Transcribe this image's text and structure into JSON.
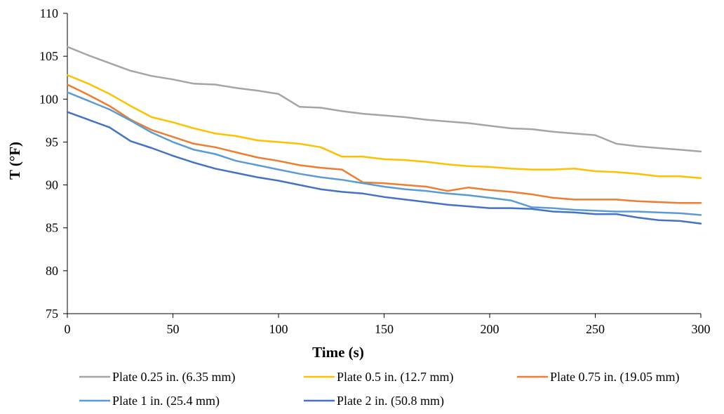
{
  "chart_data": {
    "type": "line",
    "title": "",
    "xlabel": "Time (s)",
    "ylabel": "T (°F)",
    "xlim": [
      0,
      300
    ],
    "ylim": [
      75,
      110
    ],
    "xticks": [
      0,
      50,
      100,
      150,
      200,
      250,
      300
    ],
    "yticks": [
      75,
      80,
      85,
      90,
      95,
      100,
      105,
      110
    ],
    "grid": false,
    "legend_position": "bottom",
    "series": [
      {
        "name": "Plate 0.25 in. (6.35 mm)",
        "color": "#a5a5a5",
        "x": [
          0,
          10,
          20,
          30,
          40,
          50,
          60,
          70,
          80,
          90,
          100,
          110,
          120,
          130,
          140,
          150,
          160,
          170,
          180,
          190,
          200,
          210,
          220,
          230,
          240,
          250,
          260,
          270,
          280,
          290,
          300
        ],
        "y": [
          106.1,
          105.1,
          104.2,
          103.3,
          102.7,
          102.3,
          101.8,
          101.7,
          101.3,
          101.0,
          100.6,
          99.1,
          99.0,
          98.6,
          98.3,
          98.1,
          97.9,
          97.6,
          97.4,
          97.2,
          96.9,
          96.6,
          96.5,
          96.2,
          96.0,
          95.8,
          94.8,
          94.5,
          94.3,
          94.1,
          93.9
        ]
      },
      {
        "name": "Plate 0.5 in. (12.7 mm)",
        "color": "#ffc000",
        "x": [
          0,
          10,
          20,
          30,
          40,
          50,
          60,
          70,
          80,
          90,
          100,
          110,
          120,
          130,
          140,
          150,
          160,
          170,
          180,
          190,
          200,
          210,
          220,
          230,
          240,
          250,
          260,
          270,
          280,
          290,
          300
        ],
        "y": [
          102.8,
          101.8,
          100.6,
          99.2,
          97.9,
          97.3,
          96.6,
          96.0,
          95.7,
          95.2,
          95.0,
          94.8,
          94.4,
          93.3,
          93.3,
          93.0,
          92.9,
          92.7,
          92.4,
          92.2,
          92.1,
          91.9,
          91.8,
          91.8,
          91.9,
          91.6,
          91.5,
          91.3,
          91.0,
          91.0,
          90.8
        ]
      },
      {
        "name": "Plate 0.75 in. (19.05 mm)",
        "color": "#ed7d31",
        "x": [
          0,
          10,
          20,
          30,
          40,
          50,
          60,
          70,
          80,
          90,
          100,
          110,
          120,
          130,
          140,
          150,
          160,
          170,
          180,
          190,
          200,
          210,
          220,
          230,
          240,
          250,
          260,
          270,
          280,
          290,
          300
        ],
        "y": [
          101.7,
          100.5,
          99.2,
          97.6,
          96.4,
          95.6,
          94.8,
          94.4,
          93.8,
          93.2,
          92.8,
          92.3,
          92.0,
          91.8,
          90.3,
          90.2,
          90.0,
          89.8,
          89.3,
          89.7,
          89.4,
          89.2,
          88.9,
          88.5,
          88.3,
          88.3,
          88.3,
          88.1,
          88.0,
          87.9,
          87.9
        ]
      },
      {
        "name": "Plate 1 in. (25.4 mm)",
        "color": "#5b9bd5",
        "x": [
          0,
          10,
          20,
          30,
          40,
          50,
          60,
          70,
          80,
          90,
          100,
          110,
          120,
          130,
          140,
          150,
          160,
          170,
          180,
          190,
          200,
          210,
          220,
          230,
          240,
          250,
          260,
          270,
          280,
          290,
          300
        ],
        "y": [
          100.8,
          99.8,
          98.8,
          97.5,
          96.1,
          95.0,
          94.1,
          93.6,
          92.8,
          92.3,
          91.8,
          91.3,
          90.9,
          90.6,
          90.2,
          89.8,
          89.5,
          89.3,
          89.0,
          88.8,
          88.5,
          88.2,
          87.4,
          87.3,
          87.1,
          87.0,
          86.9,
          86.9,
          86.8,
          86.7,
          86.5
        ]
      },
      {
        "name": "Plate 2 in. (50.8 mm)",
        "color": "#4472c4",
        "x": [
          0,
          10,
          20,
          30,
          40,
          50,
          60,
          70,
          80,
          90,
          100,
          110,
          120,
          130,
          140,
          150,
          160,
          170,
          180,
          190,
          200,
          210,
          220,
          230,
          240,
          250,
          260,
          270,
          280,
          290,
          300
        ],
        "y": [
          98.5,
          97.6,
          96.7,
          95.1,
          94.3,
          93.4,
          92.6,
          91.9,
          91.4,
          90.9,
          90.5,
          90.0,
          89.5,
          89.2,
          89.0,
          88.6,
          88.3,
          88.0,
          87.7,
          87.5,
          87.3,
          87.3,
          87.2,
          86.9,
          86.8,
          86.6,
          86.6,
          86.2,
          85.9,
          85.8,
          85.5
        ]
      }
    ]
  }
}
